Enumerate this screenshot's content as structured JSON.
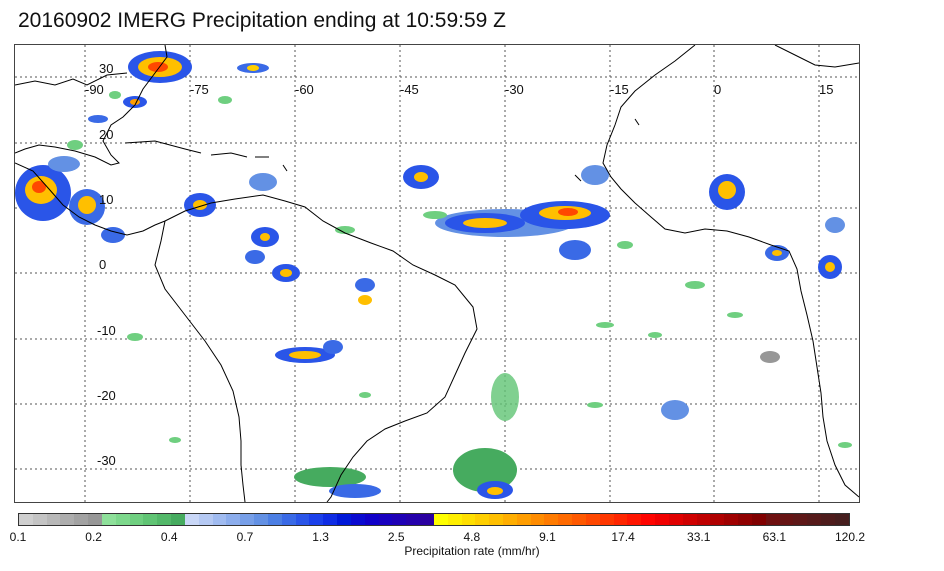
{
  "title": "20160902 IMERG Precipitation ending at 10:59:59 Z",
  "map": {
    "lon_labels": [
      "-90",
      "-75",
      "-60",
      "-45",
      "-30",
      "-15",
      "0",
      "15"
    ],
    "lat_labels": [
      "30",
      "20",
      "10",
      "0",
      "-10",
      "-20",
      "-30"
    ],
    "coastline_color": "#000000",
    "gridline_color": "#555555"
  },
  "colorbar": {
    "units_label": "Precipitation rate (mm/hr)",
    "tick_labels": [
      "0.1",
      "0.2",
      "0.4",
      "0.7",
      "1.3",
      "2.5",
      "4.8",
      "9.1",
      "17.4",
      "33.1",
      "63.1",
      "120.2"
    ],
    "colors": [
      "#cfcfcf",
      "#c4c4c4",
      "#b8b8b8",
      "#adadad",
      "#a2a2a2",
      "#979797",
      "#8ee09a",
      "#7dd88c",
      "#6fcf80",
      "#60c474",
      "#53b869",
      "#46ab5f",
      "#c9d7f7",
      "#b5c9f3",
      "#a0bbf0",
      "#8cadec",
      "#779fe8",
      "#6391e4",
      "#4c7fe4",
      "#3a6ae6",
      "#2a55e8",
      "#1b40ea",
      "#0f2ce4",
      "#0018d8",
      "#0a0ad0",
      "#1000c8",
      "#1800bf",
      "#1e00b5",
      "#2400ab",
      "#2a00a0",
      "#ffff00",
      "#ffef00",
      "#ffdf00",
      "#ffcf00",
      "#ffbf00",
      "#ffae00",
      "#ff9d00",
      "#ff8c00",
      "#ff7b00",
      "#ff6a00",
      "#ff5900",
      "#ff4800",
      "#ff3700",
      "#ff2600",
      "#ff1500",
      "#ff0400",
      "#f00000",
      "#e00000",
      "#cf0000",
      "#bf0000",
      "#af0000",
      "#9f0000",
      "#8f0000",
      "#800000",
      "#6e1010",
      "#661414",
      "#5e1818",
      "#561a1a",
      "#4e1c1c",
      "#461e1e"
    ]
  }
}
